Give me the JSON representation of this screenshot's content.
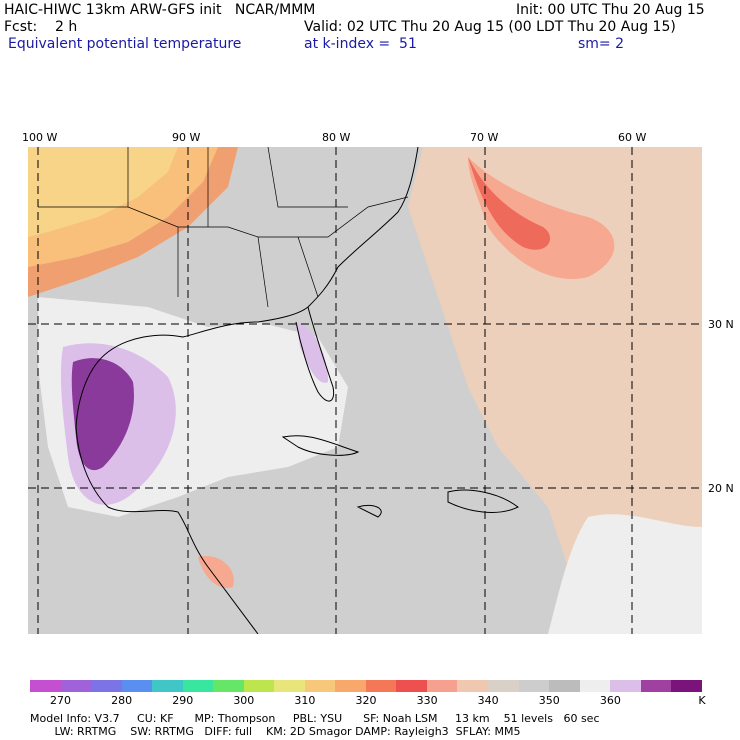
{
  "header": {
    "line1_left": "HAIC-HIWC 13km ARW-GFS init   NCAR/MMM",
    "line1_right": "Init: 00 UTC Thu 20 Aug 15",
    "line2_left": "Fcst:    2 h",
    "line2_right": "Valid: 02 UTC Thu 20 Aug 15 (00 LDT Thu 20 Aug 15)",
    "field_name": "Equivalent potential temperature",
    "level": "at k-index =  51",
    "smoothing": "sm= 2"
  },
  "map": {
    "lon_labels": [
      "100 W",
      "90 W",
      "80 W",
      "70 W",
      "60 W"
    ],
    "lat_labels": [
      "30 N",
      "20 N"
    ]
  },
  "colorbar": {
    "colors": [
      "#c44fd0",
      "#a062d8",
      "#7c74e6",
      "#5a8ef0",
      "#40c6c6",
      "#38e6a0",
      "#66e666",
      "#bde64e",
      "#e8e67a",
      "#f8c87a",
      "#f8a86a",
      "#f47858",
      "#ee5050",
      "#f6a090",
      "#f0c8b0",
      "#d9d0c8",
      "#cdcdcd",
      "#bcbcbc",
      "#eeeeee",
      "#dcbfe8",
      "#a040a0",
      "#7a147a"
    ],
    "labels": [
      "270",
      "280",
      "290",
      "300",
      "310",
      "320",
      "330",
      "340",
      "350",
      "360",
      "K"
    ]
  },
  "footer": {
    "line1": "Model Info: V3.7     CU: KF      MP: Thompson     PBL: YSU      SF: Noah LSM     13 km    51 levels   60 sec",
    "line2": "       LW: RRTMG    SW: RRTMG   DIFF: full    KM: 2D Smagor DAMP: Rayleigh3  SFLAY: MM5"
  }
}
